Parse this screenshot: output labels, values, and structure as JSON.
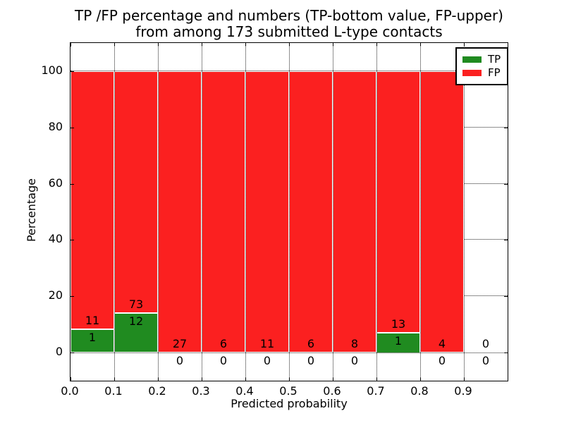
{
  "title": {
    "line1": "TP /FP percentage and numbers (TP-bottom value, FP-upper)",
    "line2": "from among 173 submitted L-type contacts"
  },
  "axes": {
    "xlabel": "Predicted probability",
    "ylabel": "Percentage",
    "x_tick_labels": [
      "0.0",
      "0.1",
      "0.2",
      "0.3",
      "0.4",
      "0.5",
      "0.6",
      "0.7",
      "0.8",
      "0.9"
    ],
    "y_tick_labels": [
      "0",
      "20",
      "40",
      "60",
      "80",
      "100"
    ],
    "y_tick_values": [
      0,
      20,
      40,
      60,
      80,
      100
    ]
  },
  "legend": {
    "items": [
      {
        "label": "TP",
        "color_key": "tp"
      },
      {
        "label": "FP",
        "color_key": "fp"
      }
    ]
  },
  "colors": {
    "tp": "#208b20",
    "fp": "#fb2020",
    "grid": "#222222",
    "text": "#000000"
  },
  "chart_data": {
    "type": "bar",
    "stacked": true,
    "title": "TP /FP percentage and numbers (TP-bottom value, FP-upper) from among 173 submitted L-type contacts",
    "xlabel": "Predicted probability",
    "ylabel": "Percentage",
    "xlim": [
      0.0,
      1.0
    ],
    "ylim": [
      -10,
      110
    ],
    "grid": true,
    "legend_position": "upper right",
    "total_submitted": 173,
    "series": [
      {
        "name": "TP",
        "position": "bottom"
      },
      {
        "name": "FP",
        "position": "upper"
      }
    ],
    "bins": [
      {
        "x0": 0.0,
        "x1": 0.1,
        "tp": 1,
        "fp": 11
      },
      {
        "x0": 0.1,
        "x1": 0.2,
        "tp": 12,
        "fp": 73
      },
      {
        "x0": 0.2,
        "x1": 0.3,
        "tp": 0,
        "fp": 27
      },
      {
        "x0": 0.3,
        "x1": 0.4,
        "tp": 0,
        "fp": 6
      },
      {
        "x0": 0.4,
        "x1": 0.5,
        "tp": 0,
        "fp": 11
      },
      {
        "x0": 0.5,
        "x1": 0.6,
        "tp": 0,
        "fp": 6
      },
      {
        "x0": 0.6,
        "x1": 0.7,
        "tp": 0,
        "fp": 8
      },
      {
        "x0": 0.7,
        "x1": 0.8,
        "tp": 1,
        "fp": 13
      },
      {
        "x0": 0.8,
        "x1": 0.9,
        "tp": 0,
        "fp": 4
      },
      {
        "x0": 0.9,
        "x1": 1.0,
        "tp": 0,
        "fp": 0
      }
    ]
  }
}
